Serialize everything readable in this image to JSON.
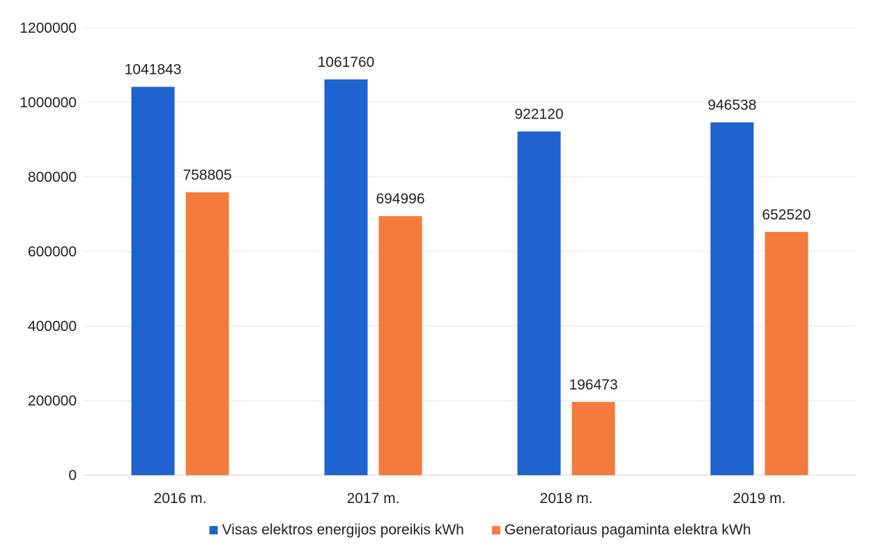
{
  "chart_data": {
    "type": "bar",
    "categories": [
      "2016 m.",
      "2017 m.",
      "2018 m.",
      "2019 m."
    ],
    "series": [
      {
        "name": "Visas elektros energijos poreikis kWh",
        "color": "#1f63d1",
        "values": [
          1041843,
          1061760,
          922120,
          946538
        ]
      },
      {
        "name": "Generatoriaus pagaminta elektra kWh",
        "color": "#f57b3c",
        "values": [
          758805,
          694996,
          196473,
          652520
        ]
      }
    ],
    "ylim": [
      0,
      1200000
    ],
    "yticks": [
      0,
      200000,
      400000,
      600000,
      800000,
      1000000,
      1200000
    ],
    "ytick_labels": [
      "0",
      "200000",
      "400000",
      "600000",
      "800000",
      "1000000",
      "1200000"
    ],
    "grid": true,
    "data_labels": true,
    "legend_position": "bottom",
    "title": "",
    "xlabel": "",
    "ylabel": ""
  }
}
